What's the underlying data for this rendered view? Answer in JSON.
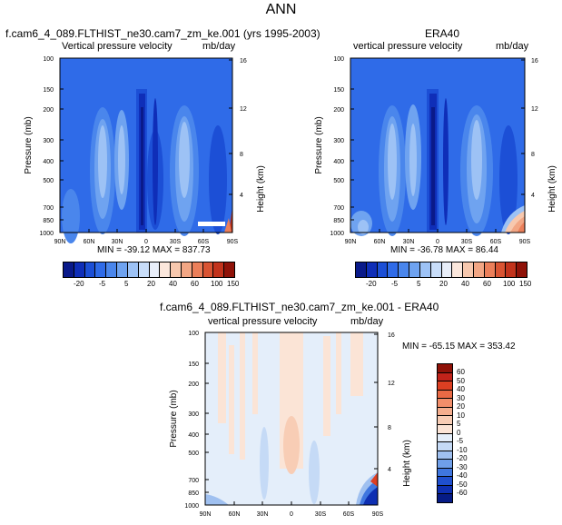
{
  "main_title": "ANN",
  "panels": [
    {
      "title": "f.cam6_4_089.FLTHIST_ne30.cam7_zm_ke.001 (yrs 1995-2003)",
      "left_label": "Vertical pressure velocity",
      "right_label": "mb/day",
      "stats": "MIN = -39.12  MAX = 837.73"
    },
    {
      "title": "ERA40",
      "left_label": "vertical pressure velocity",
      "right_label": "mb/day",
      "stats": "MIN = -36.78  MAX =  86.44"
    },
    {
      "title": "f.cam6_4_089.FLTHIST_ne30.cam7_zm_ke.001 - ERA40",
      "left_label": "vertical pressure velocity",
      "right_label": "mb/day",
      "stats": "MIN = -65.15  MAX = 353.42"
    }
  ],
  "axes": {
    "ylabel": "Pressure (mb)",
    "ylabel_right": "Height (km)",
    "pressure_ticks": [
      "100",
      "150",
      "200",
      "300",
      "400",
      "500",
      "700",
      "850",
      "1000"
    ],
    "height_ticks": [
      "4",
      "8",
      "12",
      "16"
    ],
    "lat_ticks": [
      "90N",
      "60N",
      "30N",
      "0",
      "30S",
      "60S",
      "90S"
    ]
  },
  "colorbars": {
    "top_labels": [
      "-20",
      "-5",
      "5",
      "20",
      "40",
      "60",
      "100",
      "150"
    ],
    "top_colors": [
      "#0a1a8a",
      "#0f2eb8",
      "#1c4fd6",
      "#2f6be8",
      "#4a86ec",
      "#6fa3f0",
      "#9dc2f5",
      "#c8ddf9",
      "#e8eef9",
      "#fbe7dc",
      "#f7c8ae",
      "#f2a684",
      "#eb7f5a",
      "#d95433",
      "#c2331c",
      "#8f1208"
    ],
    "diff_labels": [
      "60",
      "50",
      "40",
      "30",
      "20",
      "10",
      "5",
      "0",
      "-5",
      "-10",
      "-20",
      "-30",
      "-40",
      "-50",
      "-60"
    ],
    "diff_colors": [
      "#8f1208",
      "#c2231a",
      "#dd3f22",
      "#ea6a45",
      "#f28e6a",
      "#f5ae8e",
      "#f8cdb5",
      "#fbe4d6",
      "#e4eefa",
      "#c5daf6",
      "#9fc0f0",
      "#6f9fe9",
      "#3f76df",
      "#1f4fcf",
      "#0e2fb2",
      "#061b86"
    ]
  },
  "chart_data": [
    {
      "type": "heatmap",
      "title": "f.cam6_4_089.FLTHIST_ne30.cam7_zm_ke.001 (yrs 1995-2003)",
      "variable": "Vertical pressure velocity",
      "units": "mb/day",
      "xlabel": "",
      "ylabel": "Pressure (mb)",
      "x_ticks": [
        "90N",
        "60N",
        "30N",
        "0",
        "30S",
        "60S",
        "90S"
      ],
      "y_ticks_pressure": [
        100,
        150,
        200,
        300,
        400,
        500,
        700,
        850,
        1000
      ],
      "y_ticks_height_km": [
        4,
        8,
        12,
        16
      ],
      "color_levels": [
        -20,
        -5,
        5,
        20,
        40,
        60,
        100,
        150
      ],
      "min": -39.12,
      "max": 837.73
    },
    {
      "type": "heatmap",
      "title": "ERA40",
      "variable": "vertical pressure velocity",
      "units": "mb/day",
      "xlabel": "",
      "ylabel": "Pressure (mb)",
      "x_ticks": [
        "90N",
        "60N",
        "30N",
        "0",
        "30S",
        "60S",
        "90S"
      ],
      "y_ticks_pressure": [
        100,
        150,
        200,
        300,
        400,
        500,
        700,
        850,
        1000
      ],
      "y_ticks_height_km": [
        4,
        8,
        12,
        16
      ],
      "color_levels": [
        -20,
        -5,
        5,
        20,
        40,
        60,
        100,
        150
      ],
      "min": -36.78,
      "max": 86.44
    },
    {
      "type": "heatmap",
      "title": "f.cam6_4_089.FLTHIST_ne30.cam7_zm_ke.001 - ERA40",
      "variable": "vertical pressure velocity",
      "units": "mb/day",
      "xlabel": "",
      "ylabel": "Pressure (mb)",
      "x_ticks": [
        "90N",
        "60N",
        "30N",
        "0",
        "30S",
        "60S",
        "90S"
      ],
      "y_ticks_pressure": [
        100,
        150,
        200,
        300,
        400,
        500,
        700,
        850,
        1000
      ],
      "y_ticks_height_km": [
        4,
        8,
        12,
        16
      ],
      "color_levels": [
        -60,
        -50,
        -40,
        -30,
        -20,
        -10,
        -5,
        0,
        5,
        10,
        20,
        30,
        40,
        50,
        60
      ],
      "min": -65.15,
      "max": 353.42
    }
  ]
}
